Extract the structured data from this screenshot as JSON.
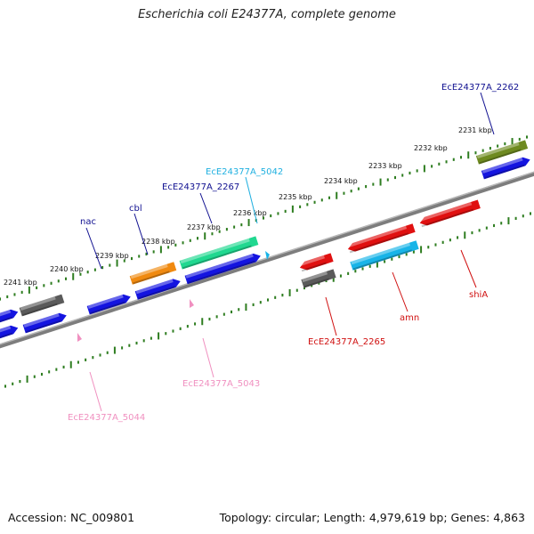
{
  "title": "Escherichia coli E24377A, complete genome",
  "footer": {
    "accession": "Accession: NC_009801",
    "summary": "Topology: circular; Length: 4,979,619 bp; Genes: 4,863"
  },
  "colors": {
    "backbone": "#8a8a8a",
    "tick": "#2e7d20",
    "gene_blue": "#1414e0",
    "gene_red": "#e01010",
    "gene_gray": "#5a5a5a",
    "gene_orange": "#f08a10",
    "gene_green": "#20d890",
    "gene_cyan": "#18b4e8",
    "gene_olive": "#6e8a20",
    "gene_pink": "#f090c0",
    "label_navy": "#101090",
    "label_red": "#d01010",
    "label_cyan": "#20b0e0",
    "label_pink": "#f090c0"
  },
  "scale_labels": [
    "2241 kbp",
    "2240 kbp",
    "2239 kbp",
    "2238 kbp",
    "2237 kbp",
    "2236 kbp",
    "2235 kbp",
    "2234 kbp",
    "2233 kbp",
    "2232 kbp",
    "2231 kbp"
  ],
  "gene_labels": {
    "nac": "nac",
    "cbl": "cbl",
    "e2267": "EcE24377A_2267",
    "e5042": "EcE24377A_5042",
    "e2262": "EcE24377A_2262",
    "e2265": "EcE24377A_2265",
    "amn": "amn",
    "shia": "shiA",
    "e5043": "EcE24377A_5043",
    "e5044": "EcE24377A_5044"
  }
}
